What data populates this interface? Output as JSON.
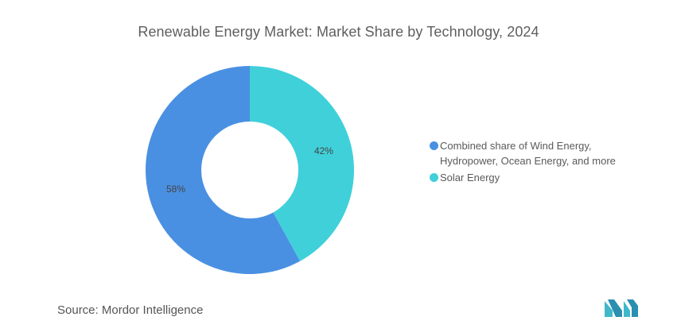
{
  "chart_data": {
    "type": "pie",
    "title": "Renewable Energy Market: Market Share by Technology, 2024",
    "donut": true,
    "series": [
      {
        "name": "Combined share of Wind Energy, Hydropower, Ocean Energy, and more",
        "legend_lines": [
          "Combined share of Wind Energy,",
          "Hydropower, Ocean Energy, and more"
        ],
        "value": 58,
        "label": "58%",
        "color": "#4a90e2"
      },
      {
        "name": "Solar Energy",
        "legend_lines": [
          "Solar Energy"
        ],
        "value": 42,
        "label": "42%",
        "color": "#40d0da"
      }
    ],
    "legend_position": "right"
  },
  "source": {
    "label": "Source:",
    "text": "Mordor Intelligence"
  },
  "logo": {
    "name": "mordor-intelligence-logo",
    "color": "#3fb8c9"
  }
}
